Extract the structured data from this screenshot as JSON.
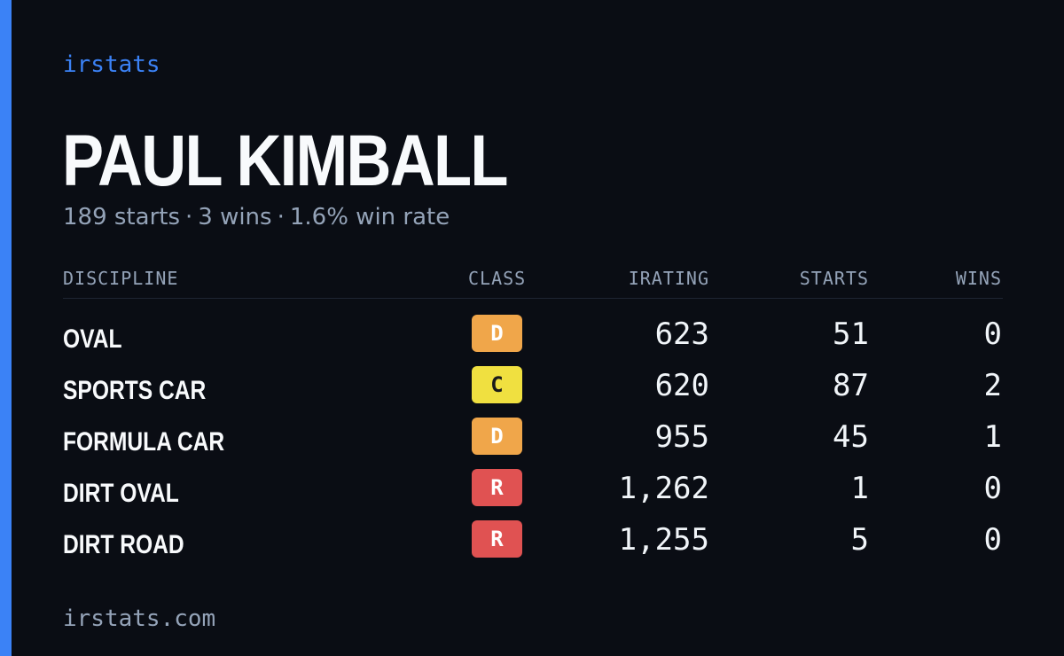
{
  "brand": "irstats",
  "player": {
    "name": "PAUL KIMBALL",
    "starts_text": "189 starts",
    "wins_text": "3 wins",
    "win_rate_text": "1.6% win rate",
    "separator": "·"
  },
  "table": {
    "headers": {
      "discipline": "DISCIPLINE",
      "class": "CLASS",
      "irating": "IRATING",
      "starts": "STARTS",
      "wins": "WINS"
    },
    "rows": [
      {
        "discipline": "OVAL",
        "class": "D",
        "irating": "623",
        "starts": "51",
        "wins": "0"
      },
      {
        "discipline": "SPORTS CAR",
        "class": "C",
        "irating": "620",
        "starts": "87",
        "wins": "2"
      },
      {
        "discipline": "FORMULA CAR",
        "class": "D",
        "irating": "955",
        "starts": "45",
        "wins": "1"
      },
      {
        "discipline": "DIRT OVAL",
        "class": "R",
        "irating": "1,262",
        "starts": "1",
        "wins": "0"
      },
      {
        "discipline": "DIRT ROAD",
        "class": "R",
        "irating": "1,255",
        "starts": "5",
        "wins": "0"
      }
    ]
  },
  "class_colors": {
    "R": {
      "bg": "#e05252",
      "fg": "#ffffff"
    },
    "D": {
      "bg": "#f0a64a",
      "fg": "#ffffff"
    },
    "C": {
      "bg": "#f0e040",
      "fg": "#1a1a1a"
    }
  },
  "colors": {
    "accent": "#3b82f6",
    "background": "#0a0d14"
  },
  "footer": {
    "url": "irstats.com"
  }
}
